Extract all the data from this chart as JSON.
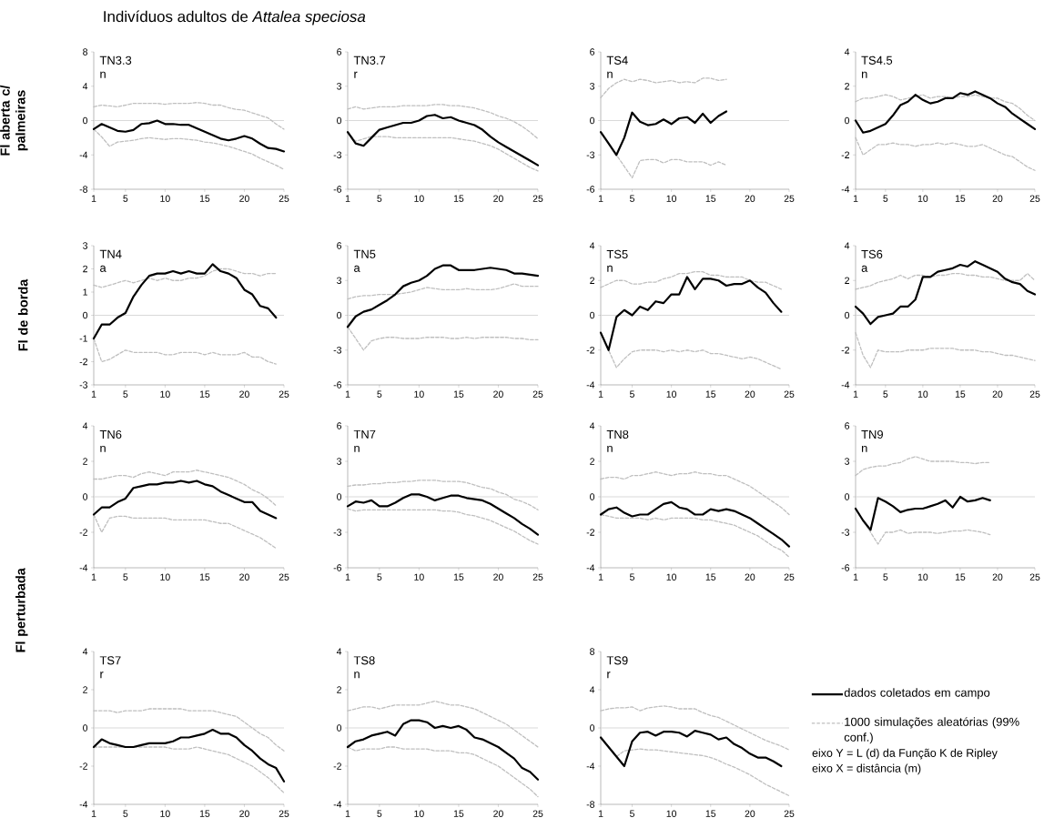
{
  "chart_data": [
    {
      "type": "line",
      "title": "Indivíduos adultos de *Attalea speciosa*",
      "ylabel": "Fl aberta c/ palmeiras",
      "annotations": [
        "TN3.3",
        "n"
      ],
      "x": [
        1,
        2,
        3,
        4,
        5,
        6,
        7,
        8,
        9,
        10,
        11,
        12,
        13,
        14,
        15,
        16,
        17,
        18,
        19,
        20,
        21,
        22,
        23,
        24,
        25
      ],
      "xlim": [
        1,
        25
      ],
      "xticks": [
        1,
        5,
        10,
        15,
        20,
        25
      ],
      "ylim": [
        -8,
        8
      ],
      "yticks": [
        -8,
        -4,
        0,
        4,
        8
      ],
      "ref_lines": [
        {
          "axis": "y",
          "value": 0,
          "color": "#d9d9d9"
        }
      ],
      "series": [
        {
          "color": "#000000",
          "line_style": "solid",
          "values": [
            -1,
            -0.4,
            -0.8,
            -1.2,
            -1.3,
            -1.1,
            -0.4,
            -0.3,
            0,
            -0.4,
            -0.4,
            -0.5,
            -0.5,
            -0.9,
            -1.3,
            -1.7,
            -2.1,
            -2.3,
            -2.1,
            -1.8,
            -2.1,
            -2.7,
            -3.2,
            -3.3,
            -3.6
          ]
        },
        {
          "color": "#bfbfbf",
          "line_style": "dashed",
          "values": [
            1.6,
            1.8,
            1.7,
            1.6,
            1.8,
            2.0,
            2.0,
            2.0,
            2.0,
            1.9,
            2.0,
            2.0,
            2.0,
            2.1,
            2.0,
            1.8,
            1.8,
            1.5,
            1.3,
            1.2,
            0.9,
            0.6,
            0.3,
            -0.4,
            -1.0
          ]
        },
        {
          "color": "#bfbfbf",
          "line_style": "dashed",
          "values": [
            -1.0,
            -1.9,
            -3.0,
            -2.5,
            -2.4,
            -2.3,
            -2.1,
            -2.0,
            -2.1,
            -2.2,
            -2.1,
            -2.1,
            -2.2,
            -2.3,
            -2.5,
            -2.6,
            -2.8,
            -3.0,
            -3.3,
            -3.6,
            -3.9,
            -4.4,
            -4.8,
            -5.2,
            -5.7
          ]
        }
      ]
    },
    {
      "type": "line",
      "annotations": [
        "TN3.7",
        "r"
      ],
      "x": [
        1,
        2,
        3,
        4,
        5,
        6,
        7,
        8,
        9,
        10,
        11,
        12,
        13,
        14,
        15,
        16,
        17,
        18,
        19,
        20,
        21,
        22,
        23,
        24,
        25
      ],
      "xlim": [
        1,
        25
      ],
      "xticks": [
        1,
        5,
        10,
        15,
        20,
        25
      ],
      "ylim": [
        -6,
        6
      ],
      "yticks": [
        -6,
        -3,
        0,
        3,
        6
      ],
      "ref_lines": [
        {
          "axis": "y",
          "value": 0,
          "color": "#d9d9d9"
        }
      ],
      "series": [
        {
          "color": "#000000",
          "line_style": "solid",
          "values": [
            -1,
            -2.0,
            -2.2,
            -1.5,
            -0.8,
            -0.6,
            -0.4,
            -0.2,
            -0.2,
            0,
            0.4,
            0.5,
            0.2,
            0.3,
            0,
            -0.2,
            -0.4,
            -0.8,
            -1.4,
            -1.9,
            -2.3,
            -2.7,
            -3.1,
            -3.5,
            -3.9
          ]
        },
        {
          "color": "#bfbfbf",
          "line_style": "dashed",
          "values": [
            1.0,
            1.2,
            1.0,
            1.1,
            1.2,
            1.2,
            1.2,
            1.3,
            1.3,
            1.3,
            1.3,
            1.4,
            1.4,
            1.3,
            1.3,
            1.2,
            1.1,
            0.9,
            0.7,
            0.4,
            0.2,
            -0.1,
            -0.5,
            -1.0,
            -1.6
          ]
        },
        {
          "color": "#bfbfbf",
          "line_style": "dashed",
          "values": [
            -1,
            -1.8,
            -1.6,
            -1.4,
            -1.4,
            -1.4,
            -1.5,
            -1.5,
            -1.5,
            -1.5,
            -1.5,
            -1.5,
            -1.5,
            -1.5,
            -1.6,
            -1.7,
            -1.8,
            -2.0,
            -2.2,
            -2.5,
            -2.9,
            -3.3,
            -3.7,
            -4.1,
            -4.4
          ]
        }
      ]
    },
    {
      "type": "line",
      "annotations": [
        "TS4",
        "n"
      ],
      "x": [
        1,
        2,
        3,
        4,
        5,
        6,
        7,
        8,
        9,
        10,
        11,
        12,
        13,
        14,
        15,
        16,
        17
      ],
      "xlim": [
        1,
        25
      ],
      "xticks": [
        1,
        5,
        10,
        15,
        20,
        25
      ],
      "ylim": [
        -6,
        6
      ],
      "yticks": [
        -6,
        -3,
        0,
        3,
        6
      ],
      "ref_lines": [
        {
          "axis": "y",
          "value": 0,
          "color": "#d9d9d9"
        }
      ],
      "series": [
        {
          "color": "#000000",
          "line_style": "solid",
          "values": [
            -1,
            -2,
            -3,
            -1.5,
            0.7,
            -0.1,
            -0.4,
            -0.3,
            0.1,
            -0.3,
            0.2,
            0.3,
            -0.2,
            0.6,
            -0.2,
            0.4,
            0.8
          ]
        },
        {
          "color": "#bfbfbf",
          "line_style": "dashed",
          "values": [
            2.0,
            2.8,
            3.3,
            3.6,
            3.4,
            3.6,
            3.5,
            3.3,
            3.4,
            3.5,
            3.3,
            3.4,
            3.3,
            3.7,
            3.7,
            3.5,
            3.6
          ]
        },
        {
          "color": "#bfbfbf",
          "line_style": "dashed",
          "values": [
            -1,
            -2,
            -3,
            -4,
            -5,
            -3.5,
            -3.4,
            -3.4,
            -3.7,
            -3.4,
            -3.4,
            -3.6,
            -3.6,
            -3.6,
            -3.9,
            -3.6,
            -3.9
          ]
        }
      ]
    },
    {
      "type": "line",
      "annotations": [
        "TS4.5",
        "n"
      ],
      "x": [
        1,
        2,
        3,
        4,
        5,
        6,
        7,
        8,
        9,
        10,
        11,
        12,
        13,
        14,
        15,
        16,
        17,
        18,
        19,
        20,
        21,
        22,
        23,
        24,
        25
      ],
      "xlim": [
        1,
        25
      ],
      "xticks": [
        1,
        5,
        10,
        15,
        20,
        25
      ],
      "ylim": [
        -4,
        4
      ],
      "yticks": [
        -4,
        -2,
        0,
        2,
        4
      ],
      "ref_lines": [
        {
          "axis": "y",
          "value": 0,
          "color": "#d9d9d9"
        }
      ],
      "series": [
        {
          "color": "#000000",
          "line_style": "solid",
          "values": [
            0,
            -0.7,
            -0.6,
            -0.4,
            -0.2,
            0.3,
            0.9,
            1.1,
            1.5,
            1.2,
            1.0,
            1.1,
            1.3,
            1.3,
            1.6,
            1.5,
            1.7,
            1.5,
            1.3,
            1.0,
            0.8,
            0.4,
            0.1,
            -0.2,
            -0.5
          ]
        },
        {
          "color": "#bfbfbf",
          "line_style": "dashed",
          "values": [
            1.1,
            1.3,
            1.3,
            1.4,
            1.5,
            1.4,
            1.2,
            1.3,
            1.4,
            1.5,
            1.3,
            1.4,
            1.4,
            1.3,
            1.4,
            1.4,
            1.5,
            1.4,
            1.3,
            1.3,
            1.1,
            1.0,
            0.7,
            0.3,
            0
          ]
        },
        {
          "color": "#bfbfbf",
          "line_style": "dashed",
          "values": [
            -1.0,
            -2.0,
            -1.7,
            -1.4,
            -1.4,
            -1.3,
            -1.4,
            -1.4,
            -1.5,
            -1.4,
            -1.4,
            -1.3,
            -1.4,
            -1.3,
            -1.4,
            -1.5,
            -1.5,
            -1.4,
            -1.6,
            -1.8,
            -2.0,
            -2.1,
            -2.4,
            -2.7,
            -2.9
          ]
        }
      ]
    },
    {
      "type": "line",
      "ylabel": "Fl de borda",
      "annotations": [
        "TN4",
        "a"
      ],
      "x": [
        1,
        2,
        3,
        4,
        5,
        6,
        7,
        8,
        9,
        10,
        11,
        12,
        13,
        14,
        15,
        16,
        17,
        18,
        19,
        20,
        21,
        22,
        23,
        24
      ],
      "xlim": [
        1,
        25
      ],
      "xticks": [
        1,
        5,
        10,
        15,
        20,
        25
      ],
      "ylim": [
        -3,
        3
      ],
      "yticks": [
        -3,
        -2,
        -1,
        0,
        1,
        2,
        3
      ],
      "ref_lines": [
        {
          "axis": "y",
          "value": 0,
          "color": "#d9d9d9"
        }
      ],
      "series": [
        {
          "color": "#000000",
          "line_style": "solid",
          "values": [
            -1,
            -0.4,
            -0.4,
            -0.1,
            0.1,
            0.8,
            1.3,
            1.7,
            1.8,
            1.8,
            1.9,
            1.8,
            1.9,
            1.8,
            1.8,
            2.2,
            1.9,
            1.8,
            1.6,
            1.1,
            0.9,
            0.4,
            0.3,
            -0.1
          ]
        },
        {
          "color": "#bfbfbf",
          "line_style": "dashed",
          "values": [
            1.3,
            1.2,
            1.3,
            1.4,
            1.5,
            1.4,
            1.5,
            1.6,
            1.5,
            1.6,
            1.5,
            1.5,
            1.6,
            1.6,
            1.7,
            1.9,
            2.0,
            2.0,
            1.9,
            1.8,
            1.8,
            1.7,
            1.8,
            1.8
          ]
        },
        {
          "color": "#bfbfbf",
          "line_style": "dashed",
          "values": [
            -1,
            -2.0,
            -1.9,
            -1.7,
            -1.5,
            -1.6,
            -1.6,
            -1.6,
            -1.6,
            -1.7,
            -1.7,
            -1.6,
            -1.6,
            -1.6,
            -1.7,
            -1.6,
            -1.7,
            -1.7,
            -1.7,
            -1.6,
            -1.8,
            -1.8,
            -2.0,
            -2.1
          ]
        }
      ]
    },
    {
      "type": "line",
      "annotations": [
        "TN5",
        "a"
      ],
      "x": [
        1,
        2,
        3,
        4,
        5,
        6,
        7,
        8,
        9,
        10,
        11,
        12,
        13,
        14,
        15,
        16,
        17,
        18,
        19,
        20,
        21,
        22,
        23,
        24,
        25
      ],
      "xlim": [
        1,
        25
      ],
      "xticks": [
        1,
        5,
        10,
        15,
        20,
        25
      ],
      "ylim": [
        -6,
        6
      ],
      "yticks": [
        -6,
        -3,
        0,
        3,
        6
      ],
      "ref_lines": [
        {
          "axis": "y",
          "value": 0,
          "color": "#d9d9d9"
        }
      ],
      "series": [
        {
          "color": "#000000",
          "line_style": "solid",
          "values": [
            -1,
            -0.1,
            0.3,
            0.5,
            0.9,
            1.3,
            1.8,
            2.5,
            2.8,
            3.0,
            3.4,
            4.0,
            4.3,
            4.3,
            3.9,
            3.9,
            3.9,
            4.0,
            4.1,
            4.0,
            3.9,
            3.6,
            3.6,
            3.5,
            3.4
          ]
        },
        {
          "color": "#bfbfbf",
          "line_style": "dashed",
          "values": [
            1.4,
            1.6,
            1.7,
            1.7,
            1.8,
            1.8,
            1.8,
            1.9,
            2.0,
            2.2,
            2.4,
            2.3,
            2.2,
            2.2,
            2.2,
            2.3,
            2.2,
            2.2,
            2.2,
            2.3,
            2.5,
            2.7,
            2.5,
            2.5,
            2.5
          ]
        },
        {
          "color": "#bfbfbf",
          "line_style": "dashed",
          "values": [
            -1,
            -2.0,
            -3.0,
            -2.2,
            -2.0,
            -1.9,
            -1.9,
            -2.0,
            -2.0,
            -2.0,
            -1.9,
            -1.9,
            -1.9,
            -2.0,
            -2.0,
            -1.9,
            -2.0,
            -1.9,
            -1.9,
            -1.9,
            -1.9,
            -2.0,
            -2.0,
            -2.1,
            -2.1
          ]
        }
      ]
    },
    {
      "type": "line",
      "annotations": [
        "TS5",
        "n"
      ],
      "x": [
        1,
        2,
        3,
        4,
        5,
        6,
        7,
        8,
        9,
        10,
        11,
        12,
        13,
        14,
        15,
        16,
        17,
        18,
        19,
        20,
        21,
        22,
        23,
        24
      ],
      "xlim": [
        1,
        25
      ],
      "xticks": [
        1,
        5,
        10,
        15,
        20,
        25
      ],
      "ylim": [
        -4,
        4
      ],
      "yticks": [
        -4,
        -2,
        0,
        2,
        4
      ],
      "ref_lines": [
        {
          "axis": "y",
          "value": 0,
          "color": "#d9d9d9"
        }
      ],
      "series": [
        {
          "color": "#000000",
          "line_style": "solid",
          "values": [
            -1,
            -2,
            -0.1,
            0.3,
            0,
            0.5,
            0.3,
            0.8,
            0.7,
            1.2,
            1.2,
            2.2,
            1.5,
            2.1,
            2.1,
            2.0,
            1.7,
            1.8,
            1.8,
            2.0,
            1.6,
            1.3,
            0.7,
            0.2
          ]
        },
        {
          "color": "#bfbfbf",
          "line_style": "dashed",
          "values": [
            1.6,
            1.8,
            2.0,
            2.0,
            1.8,
            1.8,
            1.9,
            1.9,
            2.1,
            2.2,
            2.4,
            2.4,
            2.5,
            2.5,
            2.3,
            2.3,
            2.2,
            2.2,
            2.2,
            2.0,
            1.9,
            1.9,
            1.7,
            1.5
          ]
        },
        {
          "color": "#bfbfbf",
          "line_style": "dashed",
          "values": [
            -1,
            -2,
            -3,
            -2.5,
            -2.1,
            -2.0,
            -2.0,
            -2.0,
            -2.1,
            -2.0,
            -2.1,
            -2.0,
            -2.1,
            -2.0,
            -2.2,
            -2.2,
            -2.3,
            -2.4,
            -2.5,
            -2.4,
            -2.5,
            -2.7,
            -2.9,
            -3.1
          ]
        }
      ]
    },
    {
      "type": "line",
      "annotations": [
        "TS6",
        "a"
      ],
      "x": [
        1,
        2,
        3,
        4,
        5,
        6,
        7,
        8,
        9,
        10,
        11,
        12,
        13,
        14,
        15,
        16,
        17,
        18,
        19,
        20,
        21,
        22,
        23,
        24,
        25
      ],
      "xlim": [
        1,
        25
      ],
      "xticks": [
        1,
        5,
        10,
        15,
        20,
        25
      ],
      "ylim": [
        -4,
        4
      ],
      "yticks": [
        -4,
        -2,
        0,
        2,
        4
      ],
      "ref_lines": [
        {
          "axis": "y",
          "value": 0,
          "color": "#d9d9d9"
        }
      ],
      "series": [
        {
          "color": "#000000",
          "line_style": "solid",
          "values": [
            0.5,
            0.1,
            -0.5,
            -0.1,
            0,
            0.1,
            0.5,
            0.5,
            0.9,
            2.2,
            2.2,
            2.5,
            2.6,
            2.7,
            2.9,
            2.8,
            3.1,
            2.9,
            2.7,
            2.5,
            2.1,
            1.9,
            1.8,
            1.4,
            1.2
          ]
        },
        {
          "color": "#bfbfbf",
          "line_style": "dashed",
          "values": [
            1.5,
            1.6,
            1.7,
            1.9,
            2.0,
            2.1,
            2.3,
            2.1,
            2.3,
            2.3,
            2.2,
            2.3,
            2.3,
            2.4,
            2.4,
            2.3,
            2.3,
            2.2,
            2.2,
            2.1,
            2.0,
            2.0,
            2.0,
            2.4,
            2.0
          ]
        },
        {
          "color": "#bfbfbf",
          "line_style": "dashed",
          "values": [
            -1,
            -2.3,
            -3.0,
            -2.0,
            -2.1,
            -2.1,
            -2.1,
            -2.0,
            -2.0,
            -2.0,
            -1.9,
            -1.9,
            -1.9,
            -1.9,
            -2.0,
            -2.0,
            -2.0,
            -2.1,
            -2.1,
            -2.2,
            -2.3,
            -2.3,
            -2.4,
            -2.5,
            -2.6
          ]
        }
      ]
    },
    {
      "type": "line",
      "ylabel": "Fl perturbada",
      "annotations": [
        "TN6",
        "n"
      ],
      "x": [
        1,
        2,
        3,
        4,
        5,
        6,
        7,
        8,
        9,
        10,
        11,
        12,
        13,
        14,
        15,
        16,
        17,
        18,
        19,
        20,
        21,
        22,
        23,
        24
      ],
      "xlim": [
        1,
        25
      ],
      "xticks": [
        1,
        5,
        10,
        15,
        20,
        25
      ],
      "ylim": [
        -4,
        4
      ],
      "yticks": [
        -4,
        -2,
        0,
        2,
        4
      ],
      "ref_lines": [
        {
          "axis": "y",
          "value": 0,
          "color": "#d9d9d9"
        }
      ],
      "series": [
        {
          "color": "#000000",
          "line_style": "solid",
          "values": [
            -1,
            -0.6,
            -0.6,
            -0.3,
            -0.1,
            0.5,
            0.6,
            0.7,
            0.7,
            0.8,
            0.8,
            0.9,
            0.8,
            0.9,
            0.7,
            0.6,
            0.3,
            0.1,
            -0.1,
            -0.3,
            -0.3,
            -0.8,
            -1.0,
            -1.2
          ]
        },
        {
          "color": "#bfbfbf",
          "line_style": "dashed",
          "values": [
            1.0,
            1.0,
            1.1,
            1.2,
            1.2,
            1.1,
            1.3,
            1.4,
            1.3,
            1.2,
            1.4,
            1.4,
            1.4,
            1.5,
            1.4,
            1.3,
            1.2,
            1.1,
            0.9,
            0.7,
            0.4,
            0.2,
            -0.1,
            -0.5
          ]
        },
        {
          "color": "#bfbfbf",
          "line_style": "dashed",
          "values": [
            -1,
            -2,
            -1.2,
            -1.1,
            -1.1,
            -1.2,
            -1.2,
            -1.2,
            -1.2,
            -1.2,
            -1.3,
            -1.3,
            -1.3,
            -1.3,
            -1.3,
            -1.4,
            -1.5,
            -1.5,
            -1.7,
            -1.9,
            -2.1,
            -2.3,
            -2.6,
            -2.9
          ]
        }
      ]
    },
    {
      "type": "line",
      "annotations": [
        "TN7",
        "n"
      ],
      "x": [
        1,
        2,
        3,
        4,
        5,
        6,
        7,
        8,
        9,
        10,
        11,
        12,
        13,
        14,
        15,
        16,
        17,
        18,
        19,
        20,
        21,
        22,
        23,
        24,
        25
      ],
      "xlim": [
        1,
        25
      ],
      "xticks": [
        1,
        5,
        10,
        15,
        20,
        25
      ],
      "ylim": [
        -6,
        6
      ],
      "yticks": [
        -6,
        -3,
        0,
        3,
        6
      ],
      "ref_lines": [
        {
          "axis": "y",
          "value": 0,
          "color": "#d9d9d9"
        }
      ],
      "series": [
        {
          "color": "#000000",
          "line_style": "solid",
          "values": [
            -0.8,
            -0.4,
            -0.5,
            -0.3,
            -0.8,
            -0.8,
            -0.5,
            -0.1,
            0.2,
            0.2,
            0,
            -0.3,
            -0.1,
            0.1,
            0.1,
            -0.1,
            -0.2,
            -0.3,
            -0.6,
            -1.0,
            -1.4,
            -1.8,
            -2.3,
            -2.7,
            -3.2
          ]
        },
        {
          "color": "#bfbfbf",
          "line_style": "dashed",
          "values": [
            0.9,
            1.0,
            1.0,
            1.1,
            1.1,
            1.2,
            1.2,
            1.3,
            1.3,
            1.4,
            1.4,
            1.4,
            1.3,
            1.3,
            1.3,
            1.2,
            1.0,
            0.8,
            0.7,
            0.4,
            0.2,
            -0.2,
            -0.4,
            -0.7,
            -1.1
          ]
        },
        {
          "color": "#bfbfbf",
          "line_style": "dashed",
          "values": [
            -1,
            -1.2,
            -1.1,
            -1.1,
            -1.1,
            -1.1,
            -1.1,
            -1.1,
            -1.1,
            -1.1,
            -1.1,
            -1.1,
            -1.2,
            -1.2,
            -1.3,
            -1.5,
            -1.6,
            -1.8,
            -2.0,
            -2.3,
            -2.6,
            -2.9,
            -3.3,
            -3.7,
            -4.0
          ]
        }
      ]
    },
    {
      "type": "line",
      "annotations": [
        "TN8",
        "n"
      ],
      "x": [
        1,
        2,
        3,
        4,
        5,
        6,
        7,
        8,
        9,
        10,
        11,
        12,
        13,
        14,
        15,
        16,
        17,
        18,
        19,
        20,
        21,
        22,
        23,
        24,
        25
      ],
      "xlim": [
        1,
        25
      ],
      "xticks": [
        1,
        5,
        10,
        15,
        20,
        25
      ],
      "ylim": [
        -4,
        4
      ],
      "yticks": [
        -4,
        -2,
        0,
        2,
        4
      ],
      "ref_lines": [
        {
          "axis": "y",
          "value": 0,
          "color": "#d9d9d9"
        }
      ],
      "series": [
        {
          "color": "#000000",
          "line_style": "solid",
          "values": [
            -1,
            -0.7,
            -0.6,
            -0.9,
            -1.1,
            -1.0,
            -1.0,
            -0.7,
            -0.4,
            -0.3,
            -0.6,
            -0.7,
            -1.0,
            -1.0,
            -0.7,
            -0.8,
            -0.7,
            -0.8,
            -1.0,
            -1.2,
            -1.5,
            -1.8,
            -2.1,
            -2.4,
            -2.8
          ]
        },
        {
          "color": "#bfbfbf",
          "line_style": "dashed",
          "values": [
            1.0,
            1.1,
            1.1,
            1.0,
            1.2,
            1.2,
            1.3,
            1.4,
            1.3,
            1.2,
            1.3,
            1.3,
            1.4,
            1.3,
            1.3,
            1.2,
            1.2,
            1.0,
            0.8,
            0.6,
            0.3,
            0,
            -0.3,
            -0.6,
            -1.0
          ]
        },
        {
          "color": "#bfbfbf",
          "line_style": "dashed",
          "values": [
            -1,
            -1.1,
            -1.2,
            -1.2,
            -1.2,
            -1.2,
            -1.3,
            -1.2,
            -1.3,
            -1.2,
            -1.2,
            -1.2,
            -1.2,
            -1.3,
            -1.3,
            -1.4,
            -1.5,
            -1.6,
            -1.8,
            -2.0,
            -2.2,
            -2.5,
            -2.8,
            -3.0,
            -3.4
          ]
        }
      ]
    },
    {
      "type": "line",
      "annotations": [
        "TN9",
        "n"
      ],
      "x": [
        1,
        2,
        3,
        4,
        5,
        6,
        7,
        8,
        9,
        10,
        11,
        12,
        13,
        14,
        15,
        16,
        17,
        18,
        19
      ],
      "xlim": [
        1,
        25
      ],
      "xticks": [
        1,
        5,
        10,
        15,
        20,
        25
      ],
      "ylim": [
        -6,
        6
      ],
      "yticks": [
        -6,
        -3,
        0,
        3,
        6
      ],
      "ref_lines": [
        {
          "axis": "y",
          "value": 0,
          "color": "#d9d9d9"
        }
      ],
      "series": [
        {
          "color": "#000000",
          "line_style": "solid",
          "values": [
            -1,
            -2,
            -2.8,
            -0.1,
            -0.4,
            -0.8,
            -1.3,
            -1.1,
            -1.0,
            -1.0,
            -0.8,
            -0.6,
            -0.3,
            -0.9,
            0,
            -0.4,
            -0.3,
            -0.1,
            -0.3
          ]
        },
        {
          "color": "#bfbfbf",
          "line_style": "dashed",
          "values": [
            1.8,
            2.3,
            2.5,
            2.6,
            2.6,
            2.8,
            2.9,
            3.2,
            3.4,
            3.2,
            3.0,
            3.0,
            3.0,
            3.0,
            2.9,
            2.9,
            2.8,
            2.9,
            2.9
          ]
        },
        {
          "color": "#bfbfbf",
          "line_style": "dashed",
          "values": [
            -1,
            -2,
            -3,
            -4,
            -3,
            -3.0,
            -2.8,
            -3.1,
            -3.0,
            -3.0,
            -3.0,
            -3.1,
            -3.0,
            -2.9,
            -2.9,
            -2.8,
            -2.9,
            -3.0,
            -3.2
          ]
        }
      ]
    },
    {
      "type": "line",
      "annotations": [
        "TS7",
        "r"
      ],
      "x": [
        1,
        2,
        3,
        4,
        5,
        6,
        7,
        8,
        9,
        10,
        11,
        12,
        13,
        14,
        15,
        16,
        17,
        18,
        19,
        20,
        21,
        22,
        23,
        24,
        25
      ],
      "xlim": [
        1,
        25
      ],
      "xticks": [
        1,
        5,
        10,
        15,
        20,
        25
      ],
      "ylim": [
        -4,
        4
      ],
      "yticks": [
        -4,
        -2,
        0,
        2,
        4
      ],
      "ref_lines": [
        {
          "axis": "y",
          "value": 0,
          "color": "#d9d9d9"
        }
      ],
      "series": [
        {
          "color": "#000000",
          "line_style": "solid",
          "values": [
            -1,
            -0.6,
            -0.8,
            -0.9,
            -1.0,
            -1.0,
            -0.9,
            -0.8,
            -0.8,
            -0.8,
            -0.7,
            -0.5,
            -0.5,
            -0.4,
            -0.3,
            -0.1,
            -0.3,
            -0.3,
            -0.5,
            -0.9,
            -1.2,
            -1.6,
            -1.9,
            -2.1,
            -2.8
          ]
        },
        {
          "color": "#bfbfbf",
          "line_style": "dashed",
          "values": [
            0.9,
            0.9,
            0.9,
            0.8,
            0.9,
            0.9,
            0.9,
            1.0,
            1.0,
            1.0,
            1.0,
            1.0,
            0.9,
            0.9,
            0.9,
            0.9,
            0.8,
            0.7,
            0.6,
            0.3,
            0,
            -0.3,
            -0.5,
            -0.9,
            -1.2
          ]
        },
        {
          "color": "#bfbfbf",
          "line_style": "dashed",
          "values": [
            -1,
            -1.0,
            -1.0,
            -1.0,
            -1.0,
            -1.0,
            -1.0,
            -1.0,
            -1.0,
            -1.0,
            -1.1,
            -1.1,
            -1.1,
            -1.0,
            -1.1,
            -1.2,
            -1.3,
            -1.4,
            -1.6,
            -1.8,
            -2.0,
            -2.3,
            -2.6,
            -3.0,
            -3.4
          ]
        }
      ]
    },
    {
      "type": "line",
      "annotations": [
        "TS8",
        "n"
      ],
      "x": [
        1,
        2,
        3,
        4,
        5,
        6,
        7,
        8,
        9,
        10,
        11,
        12,
        13,
        14,
        15,
        16,
        17,
        18,
        19,
        20,
        21,
        22,
        23,
        24,
        25
      ],
      "xlim": [
        1,
        25
      ],
      "xticks": [
        1,
        5,
        10,
        15,
        20,
        25
      ],
      "ylim": [
        -4,
        4
      ],
      "yticks": [
        -4,
        -2,
        0,
        2,
        4
      ],
      "ref_lines": [
        {
          "axis": "y",
          "value": 0,
          "color": "#d9d9d9"
        }
      ],
      "series": [
        {
          "color": "#000000",
          "line_style": "solid",
          "values": [
            -1,
            -0.7,
            -0.6,
            -0.4,
            -0.3,
            -0.2,
            -0.4,
            0.2,
            0.4,
            0.4,
            0.3,
            0,
            0.1,
            0,
            0.1,
            -0.1,
            -0.5,
            -0.6,
            -0.8,
            -1.0,
            -1.3,
            -1.6,
            -2.1,
            -2.3,
            -2.7
          ]
        },
        {
          "color": "#bfbfbf",
          "line_style": "dashed",
          "values": [
            0.9,
            1.0,
            1.1,
            1.1,
            1.0,
            1.1,
            1.2,
            1.2,
            1.2,
            1.2,
            1.3,
            1.4,
            1.3,
            1.2,
            1.2,
            1.1,
            1.0,
            0.8,
            0.6,
            0.4,
            0.2,
            -0.1,
            -0.4,
            -0.7,
            -1.0
          ]
        },
        {
          "color": "#bfbfbf",
          "line_style": "dashed",
          "values": [
            -1,
            -1.2,
            -1.1,
            -1.1,
            -1.1,
            -1.0,
            -1.0,
            -1.1,
            -1.1,
            -1.1,
            -1.1,
            -1.2,
            -1.2,
            -1.2,
            -1.3,
            -1.3,
            -1.4,
            -1.6,
            -1.8,
            -2.0,
            -2.3,
            -2.6,
            -2.9,
            -3.2,
            -3.6
          ]
        }
      ]
    },
    {
      "type": "line",
      "annotations": [
        "TS9",
        "r",
        "eixo Y = L (d) da Função K de Ripley",
        "eixo X = distância (m)"
      ],
      "legend": "right",
      "x": [
        1,
        2,
        3,
        4,
        5,
        6,
        7,
        8,
        9,
        10,
        11,
        12,
        13,
        14,
        15,
        16,
        17,
        18,
        19,
        20,
        21,
        22,
        23,
        24,
        25
      ],
      "xlim": [
        1,
        25
      ],
      "xticks": [
        1,
        5,
        10,
        15,
        20,
        25
      ],
      "ylim": [
        -8,
        8
      ],
      "yticks": [
        -8,
        -4,
        0,
        4,
        8
      ],
      "ref_lines": [
        {
          "axis": "y",
          "value": 0,
          "color": "#d9d9d9"
        }
      ],
      "series": [
        {
          "name": "dados coletados em campo",
          "color": "#000000",
          "line_style": "solid",
          "values": [
            -1,
            -2,
            -3,
            -4,
            -1.4,
            -0.5,
            -0.4,
            -0.8,
            -0.4,
            -0.4,
            -0.5,
            -0.9,
            -0.3,
            -0.5,
            -0.7,
            -1.2,
            -1.0,
            -1.7,
            -2.1,
            -2.7,
            -3.1,
            -3.1,
            -3.5,
            -4.0,
            null
          ]
        },
        {
          "name": "1000 simulações aleatórias (99% conf.)",
          "color": "#bfbfbf",
          "line_style": "dashed",
          "values": [
            1.8,
            2.0,
            2.1,
            2.1,
            2.2,
            1.8,
            2.1,
            2.2,
            2.3,
            2.2,
            2.0,
            2.0,
            2.0,
            1.6,
            1.3,
            1.1,
            0.7,
            0.3,
            -0.1,
            -0.5,
            -0.9,
            -1.3,
            -1.6,
            -1.9,
            -2.3
          ]
        },
        {
          "color": "#bfbfbf",
          "line_style": "dashed",
          "values": [
            -1,
            -2,
            -3,
            -2.4,
            -2.3,
            -2.2,
            -2.3,
            -2.3,
            -2.4,
            -2.5,
            -2.6,
            -2.7,
            -2.8,
            -2.9,
            -3.1,
            -3.4,
            -3.8,
            -4.1,
            -4.5,
            -4.9,
            -5.4,
            -5.9,
            -6.3,
            -6.7,
            -7.1
          ]
        }
      ]
    }
  ]
}
